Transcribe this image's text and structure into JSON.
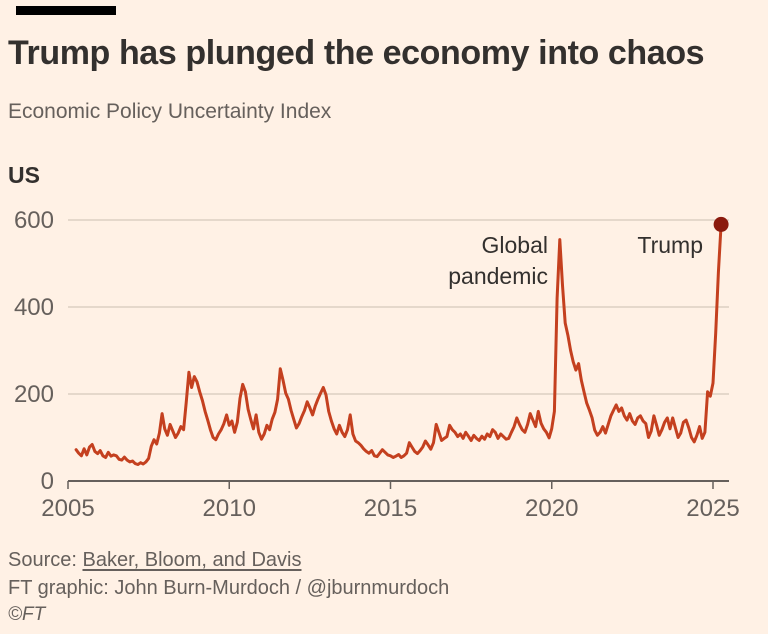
{
  "header": {
    "title": "Trump has plunged the economy into chaos",
    "subtitle": "Economic Policy Uncertainty Index"
  },
  "chart": {
    "series_label": "US",
    "annotations": [
      {
        "text": "Global pandemic"
      },
      {
        "text": "Trump"
      }
    ]
  },
  "chart_data": {
    "type": "line",
    "title": "Economic Policy Uncertainty Index",
    "series_name": "US",
    "x_start": 2005.25,
    "x_step_years": 0.0833333,
    "x_ticks": [
      2005,
      2010,
      2015,
      2020,
      2025
    ],
    "y_ticks": [
      0,
      200,
      400,
      600
    ],
    "xlim": [
      2005,
      2025.5
    ],
    "ylim": [
      0,
      620
    ],
    "grid": "horizontal",
    "legend": "none",
    "line_color": "#c4401f",
    "end_dot_color": "#8b1a0d",
    "axis_color": "#66605c",
    "gridline_color": "#d5c9bc",
    "background_color": "#FFF1E5",
    "values": [
      72,
      64,
      58,
      74,
      60,
      78,
      84,
      68,
      63,
      70,
      58,
      54,
      66,
      57,
      60,
      58,
      50,
      48,
      55,
      48,
      44,
      46,
      40,
      38,
      42,
      39,
      44,
      52,
      80,
      95,
      85,
      110,
      155,
      120,
      105,
      130,
      115,
      100,
      110,
      125,
      118,
      180,
      250,
      215,
      240,
      228,
      205,
      185,
      160,
      140,
      118,
      100,
      95,
      108,
      118,
      132,
      152,
      128,
      138,
      112,
      135,
      190,
      222,
      205,
      165,
      142,
      120,
      152,
      112,
      96,
      108,
      128,
      118,
      142,
      158,
      188,
      258,
      232,
      202,
      188,
      162,
      142,
      122,
      132,
      148,
      162,
      182,
      168,
      152,
      172,
      188,
      202,
      215,
      198,
      160,
      138,
      120,
      108,
      128,
      112,
      102,
      118,
      152,
      108,
      92,
      88,
      82,
      74,
      68,
      64,
      70,
      58,
      56,
      64,
      72,
      66,
      60,
      58,
      54,
      57,
      61,
      54,
      58,
      64,
      88,
      78,
      68,
      63,
      70,
      78,
      92,
      83,
      73,
      88,
      130,
      112,
      93,
      98,
      102,
      128,
      118,
      112,
      102,
      108,
      98,
      112,
      103,
      93,
      105,
      98,
      93,
      103,
      96,
      108,
      102,
      118,
      112,
      98,
      108,
      102,
      96,
      98,
      112,
      125,
      145,
      130,
      118,
      112,
      130,
      155,
      140,
      125,
      160,
      133,
      120,
      112,
      99,
      120,
      160,
      420,
      555,
      450,
      363,
      335,
      300,
      274,
      255,
      270,
      232,
      205,
      179,
      163,
      145,
      117,
      105,
      112,
      125,
      110,
      130,
      150,
      163,
      175,
      160,
      168,
      150,
      140,
      155,
      138,
      130,
      145,
      150,
      138,
      132,
      100,
      115,
      150,
      128,
      105,
      118,
      135,
      145,
      120,
      145,
      122,
      100,
      110,
      135,
      140,
      122,
      100,
      90,
      105,
      125,
      98,
      112,
      205,
      195,
      225,
      340,
      480,
      590
    ],
    "annotations": [
      {
        "text": "Global pandemic",
        "x": 2020.25,
        "y": 555
      },
      {
        "text": "Trump",
        "x": 2025.25,
        "y": 590
      }
    ]
  },
  "footer": {
    "source_prefix": "Source: ",
    "source_link": "Baker, Bloom, and Davis",
    "credit": "FT graphic: John Burn-Murdoch / @jburnmurdoch",
    "copyright": "©FT"
  }
}
